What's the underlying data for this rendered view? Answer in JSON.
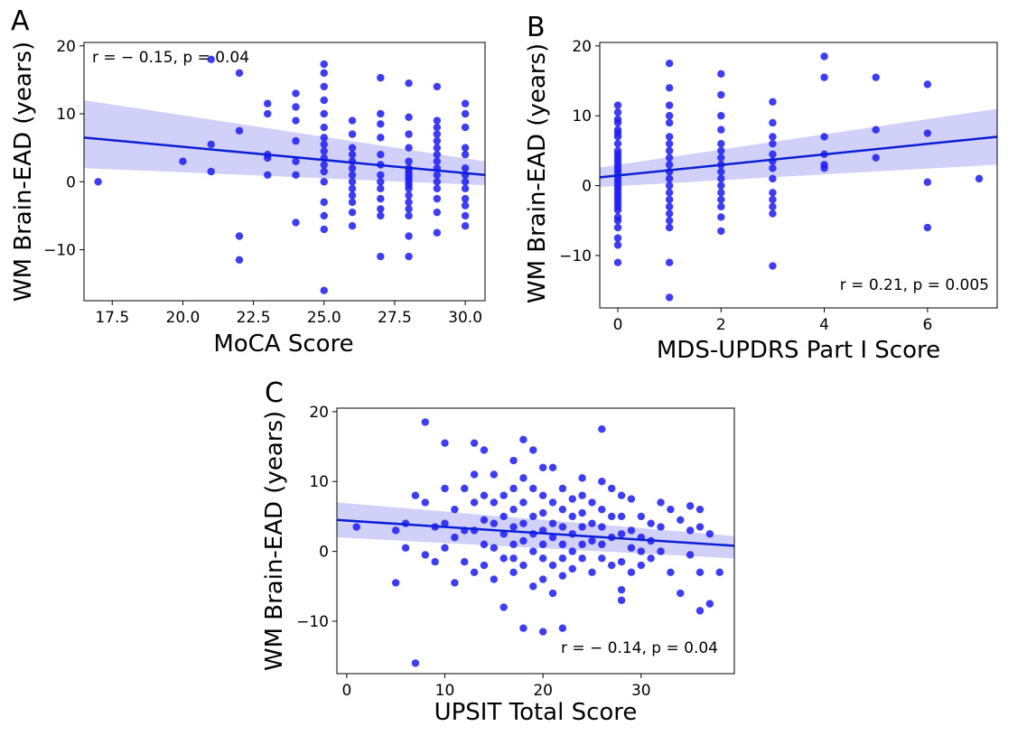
{
  "panels": {
    "A": {
      "letter": "A",
      "annotation": "r = − 0.15, p = 0.04"
    },
    "B": {
      "letter": "B",
      "annotation": "r = 0.21, p = 0.005"
    },
    "C": {
      "letter": "C",
      "annotation": "r = − 0.14, p = 0.04"
    }
  },
  "colors": {
    "points": "#1a1aff",
    "line": "#0b1fd6",
    "band": "#c8c8f8"
  },
  "chart_data": [
    {
      "type": "scatter",
      "panel": "A",
      "xlabel": "MoCA Score",
      "ylabel": "WM Brain-EAD (years)",
      "xlim": [
        16.5,
        30.7
      ],
      "ylim": [
        -17.5,
        20.5
      ],
      "xticks": [
        "17.5",
        "20.0",
        "22.5",
        "25.0",
        "27.5",
        "30.0"
      ],
      "yticks": [
        "−10",
        "0",
        "10",
        "20"
      ],
      "annotation": {
        "r": -0.15,
        "p": 0.04
      },
      "regression": {
        "x": [
          16.5,
          30.7
        ],
        "y": [
          6.5,
          1.0
        ]
      },
      "ci_band": {
        "x": [
          16.5,
          30.7
        ],
        "upper": [
          12.0,
          3.0
        ],
        "lower": [
          2.0,
          -0.5
        ]
      },
      "points": [
        [
          17,
          0
        ],
        [
          20,
          3
        ],
        [
          21,
          1.5
        ],
        [
          21,
          5.5
        ],
        [
          21,
          18
        ],
        [
          22,
          16
        ],
        [
          22,
          7.5
        ],
        [
          22,
          -8
        ],
        [
          22,
          -11.5
        ],
        [
          23,
          11.5
        ],
        [
          23,
          10
        ],
        [
          23,
          4
        ],
        [
          23,
          3.5
        ],
        [
          23,
          1
        ],
        [
          24,
          13
        ],
        [
          24,
          11
        ],
        [
          24,
          9
        ],
        [
          24,
          6
        ],
        [
          24,
          3
        ],
        [
          24,
          1
        ],
        [
          24,
          -6
        ],
        [
          25,
          17.3
        ],
        [
          25,
          16
        ],
        [
          25,
          14
        ],
        [
          25,
          12
        ],
        [
          25,
          10
        ],
        [
          25,
          8
        ],
        [
          25,
          6.5
        ],
        [
          25,
          5.5
        ],
        [
          25,
          4.5
        ],
        [
          25,
          3.5
        ],
        [
          25,
          2.5
        ],
        [
          25,
          1.5
        ],
        [
          25,
          0
        ],
        [
          25,
          -3
        ],
        [
          25,
          -5
        ],
        [
          25,
          -7
        ],
        [
          25,
          -16
        ],
        [
          26,
          9
        ],
        [
          26,
          7
        ],
        [
          26,
          5
        ],
        [
          26,
          4
        ],
        [
          26,
          3
        ],
        [
          26,
          2
        ],
        [
          26,
          1
        ],
        [
          26,
          0
        ],
        [
          26,
          -1
        ],
        [
          26,
          -2
        ],
        [
          26,
          -3
        ],
        [
          26,
          -4.5
        ],
        [
          26,
          -6.5
        ],
        [
          27,
          15.3
        ],
        [
          27,
          10
        ],
        [
          27,
          8.5
        ],
        [
          27,
          6.5
        ],
        [
          27,
          4
        ],
        [
          27,
          2.5
        ],
        [
          27,
          1
        ],
        [
          27,
          0
        ],
        [
          27,
          -1
        ],
        [
          27,
          -2.5
        ],
        [
          27,
          -4
        ],
        [
          27,
          -5
        ],
        [
          27,
          -11
        ],
        [
          28,
          14.5
        ],
        [
          28,
          9.5
        ],
        [
          28,
          7
        ],
        [
          28,
          5
        ],
        [
          28,
          3
        ],
        [
          28,
          2
        ],
        [
          28,
          1.5
        ],
        [
          28,
          1
        ],
        [
          28,
          0.5
        ],
        [
          28,
          0
        ],
        [
          28,
          -0.5
        ],
        [
          28,
          -1
        ],
        [
          28,
          -2
        ],
        [
          28,
          -3
        ],
        [
          28,
          -4
        ],
        [
          28,
          -5
        ],
        [
          28,
          -8
        ],
        [
          28,
          -11
        ],
        [
          29,
          14
        ],
        [
          29,
          9
        ],
        [
          29,
          8
        ],
        [
          29,
          7
        ],
        [
          29,
          6
        ],
        [
          29,
          5
        ],
        [
          29,
          4
        ],
        [
          29,
          3
        ],
        [
          29,
          2
        ],
        [
          29,
          1
        ],
        [
          29,
          0
        ],
        [
          29,
          -1
        ],
        [
          29,
          -2.5
        ],
        [
          29,
          -4.5
        ],
        [
          29,
          -7.5
        ],
        [
          30,
          11.5
        ],
        [
          30,
          10
        ],
        [
          30,
          8
        ],
        [
          30,
          5
        ],
        [
          30,
          4
        ],
        [
          30,
          2
        ],
        [
          30,
          1
        ],
        [
          30,
          0
        ],
        [
          30,
          -1
        ],
        [
          30,
          -2.5
        ],
        [
          30,
          -3.5
        ],
        [
          30,
          -5
        ],
        [
          30,
          -6.5
        ]
      ]
    },
    {
      "type": "scatter",
      "panel": "B",
      "xlabel": "MDS-UPDRS Part I Score",
      "ylabel": "WM Brain-EAD (years)",
      "xlim": [
        -0.35,
        7.35
      ],
      "ylim": [
        -17.5,
        20.5
      ],
      "xticks": [
        "0",
        "2",
        "4",
        "6"
      ],
      "yticks": [
        "−10",
        "0",
        "10",
        "20"
      ],
      "annotation": {
        "r": 0.21,
        "p": 0.005
      },
      "regression": {
        "x": [
          -0.35,
          7.35
        ],
        "y": [
          1.2,
          7.0
        ]
      },
      "ci_band": {
        "x": [
          -0.35,
          7.35
        ],
        "upper": [
          2.6,
          11.0
        ],
        "lower": [
          -0.2,
          3.0
        ]
      },
      "points": [
        [
          0,
          11.5
        ],
        [
          0,
          10.5
        ],
        [
          0,
          9.5
        ],
        [
          0,
          9
        ],
        [
          0,
          8
        ],
        [
          0,
          7.5
        ],
        [
          0,
          7
        ],
        [
          0,
          6
        ],
        [
          0,
          5
        ],
        [
          0,
          4.5
        ],
        [
          0,
          4
        ],
        [
          0,
          3.5
        ],
        [
          0,
          3
        ],
        [
          0,
          2.5
        ],
        [
          0,
          2
        ],
        [
          0,
          1.5
        ],
        [
          0,
          1
        ],
        [
          0,
          0.5
        ],
        [
          0,
          0
        ],
        [
          0,
          -0.5
        ],
        [
          0,
          -1
        ],
        [
          0,
          -1.5
        ],
        [
          0,
          -2
        ],
        [
          0,
          -2.5
        ],
        [
          0,
          -3
        ],
        [
          0,
          -3.5
        ],
        [
          0,
          -4.5
        ],
        [
          0,
          -5
        ],
        [
          0,
          -6
        ],
        [
          0,
          -7.5
        ],
        [
          0,
          -8.5
        ],
        [
          0,
          -11
        ],
        [
          1,
          17.5
        ],
        [
          1,
          14
        ],
        [
          1,
          11.5
        ],
        [
          1,
          10
        ],
        [
          1,
          9
        ],
        [
          1,
          7
        ],
        [
          1,
          6
        ],
        [
          1,
          5
        ],
        [
          1,
          4
        ],
        [
          1,
          3
        ],
        [
          1,
          2
        ],
        [
          1,
          1
        ],
        [
          1,
          0
        ],
        [
          1,
          -1
        ],
        [
          1,
          -2
        ],
        [
          1,
          -3
        ],
        [
          1,
          -4
        ],
        [
          1,
          -5
        ],
        [
          1,
          -6
        ],
        [
          1,
          -11
        ],
        [
          1,
          -16
        ],
        [
          2,
          16
        ],
        [
          2,
          13
        ],
        [
          2,
          10
        ],
        [
          2,
          8
        ],
        [
          2,
          6
        ],
        [
          2,
          5
        ],
        [
          2,
          4
        ],
        [
          2,
          3
        ],
        [
          2,
          2
        ],
        [
          2,
          1
        ],
        [
          2,
          0
        ],
        [
          2,
          -1
        ],
        [
          2,
          -2
        ],
        [
          2,
          -3
        ],
        [
          2,
          -4.5
        ],
        [
          2,
          -6.5
        ],
        [
          3,
          12
        ],
        [
          3,
          9
        ],
        [
          3,
          7
        ],
        [
          3,
          6
        ],
        [
          3,
          4.5
        ],
        [
          3,
          3.5
        ],
        [
          3,
          2.5
        ],
        [
          3,
          1
        ],
        [
          3,
          -1
        ],
        [
          3,
          -2
        ],
        [
          3,
          -3
        ],
        [
          3,
          -4
        ],
        [
          3,
          -11.5
        ],
        [
          4,
          18.5
        ],
        [
          4,
          15.5
        ],
        [
          4,
          7
        ],
        [
          4,
          4.5
        ],
        [
          4,
          3
        ],
        [
          4,
          2.5
        ],
        [
          5,
          15.5
        ],
        [
          5,
          8
        ],
        [
          5,
          4
        ],
        [
          6,
          14.5
        ],
        [
          6,
          7.5
        ],
        [
          6,
          0.5
        ],
        [
          6,
          -6
        ],
        [
          7,
          1
        ]
      ]
    },
    {
      "type": "scatter",
      "panel": "C",
      "xlabel": "UPSIT Total Score",
      "ylabel": "WM Brain-EAD (years)",
      "xlim": [
        -1,
        39.5
      ],
      "ylim": [
        -17.5,
        20.5
      ],
      "xticks": [
        "0",
        "10",
        "20",
        "30"
      ],
      "yticks": [
        "−10",
        "0",
        "10",
        "20"
      ],
      "annotation": {
        "r": -0.14,
        "p": 0.04
      },
      "regression": {
        "x": [
          -1,
          39.5
        ],
        "y": [
          4.5,
          0.8
        ]
      },
      "ci_band": {
        "x": [
          -1,
          39.5
        ],
        "upper": [
          7.0,
          2.2
        ],
        "lower": [
          2.0,
          -1.0
        ]
      },
      "points": [
        [
          1,
          3.5
        ],
        [
          5,
          3
        ],
        [
          5,
          -4.5
        ],
        [
          6,
          4
        ],
        [
          6,
          0.5
        ],
        [
          7,
          8
        ],
        [
          7,
          -16
        ],
        [
          8,
          18.5
        ],
        [
          8,
          7
        ],
        [
          8,
          -0.5
        ],
        [
          9,
          3.5
        ],
        [
          9,
          -1.5
        ],
        [
          10,
          15.5
        ],
        [
          10,
          9
        ],
        [
          10,
          4
        ],
        [
          10,
          0.5
        ],
        [
          11,
          6
        ],
        [
          11,
          2
        ],
        [
          11,
          -4.5
        ],
        [
          12,
          9
        ],
        [
          12,
          3
        ],
        [
          12,
          -1.5
        ],
        [
          13,
          15.5
        ],
        [
          13,
          11
        ],
        [
          13,
          7
        ],
        [
          13,
          3
        ],
        [
          13,
          -3
        ],
        [
          14,
          14.5
        ],
        [
          14,
          8
        ],
        [
          14,
          4.5
        ],
        [
          14,
          1
        ],
        [
          14,
          -2
        ],
        [
          15,
          11
        ],
        [
          15,
          7
        ],
        [
          15,
          4
        ],
        [
          15,
          0.5
        ],
        [
          15,
          -4
        ],
        [
          16,
          8
        ],
        [
          16,
          5
        ],
        [
          16,
          2.5
        ],
        [
          16,
          -1
        ],
        [
          16,
          -8
        ],
        [
          17,
          13
        ],
        [
          17,
          9
        ],
        [
          17,
          6
        ],
        [
          17,
          3.5
        ],
        [
          17,
          1
        ],
        [
          17,
          -1
        ],
        [
          17,
          -3
        ],
        [
          18,
          16
        ],
        [
          18,
          10.5
        ],
        [
          18,
          7
        ],
        [
          18,
          4
        ],
        [
          18,
          1.5
        ],
        [
          18,
          -2
        ],
        [
          18,
          -11
        ],
        [
          19,
          14.5
        ],
        [
          19,
          9
        ],
        [
          19,
          5
        ],
        [
          19,
          2.5
        ],
        [
          19,
          0
        ],
        [
          19,
          -5
        ],
        [
          20,
          12
        ],
        [
          20,
          8
        ],
        [
          20,
          5.5
        ],
        [
          20,
          3
        ],
        [
          20,
          1
        ],
        [
          20,
          -1
        ],
        [
          20,
          -4
        ],
        [
          20,
          -11.5
        ],
        [
          21,
          12
        ],
        [
          21,
          7
        ],
        [
          21,
          4
        ],
        [
          21,
          2
        ],
        [
          21,
          -2
        ],
        [
          21,
          -6
        ],
        [
          22,
          9
        ],
        [
          22,
          6
        ],
        [
          22,
          3.5
        ],
        [
          22,
          1
        ],
        [
          22,
          -1
        ],
        [
          22,
          -3.5
        ],
        [
          22,
          -11
        ],
        [
          23,
          7.5
        ],
        [
          23,
          5
        ],
        [
          23,
          2.5
        ],
        [
          23,
          0
        ],
        [
          23,
          -2.5
        ],
        [
          24,
          10.5
        ],
        [
          24,
          8
        ],
        [
          24,
          5.5
        ],
        [
          24,
          3.5
        ],
        [
          24,
          1
        ],
        [
          24,
          -1
        ],
        [
          25,
          7
        ],
        [
          25,
          4
        ],
        [
          25,
          1.5
        ],
        [
          25,
          -3
        ],
        [
          26,
          17.5
        ],
        [
          26,
          10
        ],
        [
          26,
          6
        ],
        [
          26,
          3.5
        ],
        [
          26,
          1
        ],
        [
          26,
          -1
        ],
        [
          27,
          9
        ],
        [
          27,
          5
        ],
        [
          27,
          2
        ],
        [
          27,
          -2
        ],
        [
          28,
          8
        ],
        [
          28,
          5
        ],
        [
          28,
          2.5
        ],
        [
          28,
          -1.5
        ],
        [
          28,
          -5.5
        ],
        [
          28,
          -7
        ],
        [
          29,
          7.5
        ],
        [
          29,
          3
        ],
        [
          29,
          0.5
        ],
        [
          29,
          -3
        ],
        [
          30,
          5
        ],
        [
          30,
          2
        ],
        [
          30,
          0
        ],
        [
          30,
          -2
        ],
        [
          31,
          4
        ],
        [
          31,
          1.5
        ],
        [
          31,
          -1
        ],
        [
          32,
          7
        ],
        [
          32,
          3.5
        ],
        [
          32,
          0
        ],
        [
          33,
          6
        ],
        [
          33,
          -3
        ],
        [
          34,
          4.5
        ],
        [
          34,
          -6
        ],
        [
          35,
          6.5
        ],
        [
          35,
          3
        ],
        [
          35,
          -0.5
        ],
        [
          36,
          6
        ],
        [
          36,
          3.5
        ],
        [
          36,
          -3
        ],
        [
          36,
          -8.5
        ],
        [
          37,
          2.5
        ],
        [
          37,
          -7.5
        ],
        [
          38,
          -3
        ]
      ]
    }
  ]
}
